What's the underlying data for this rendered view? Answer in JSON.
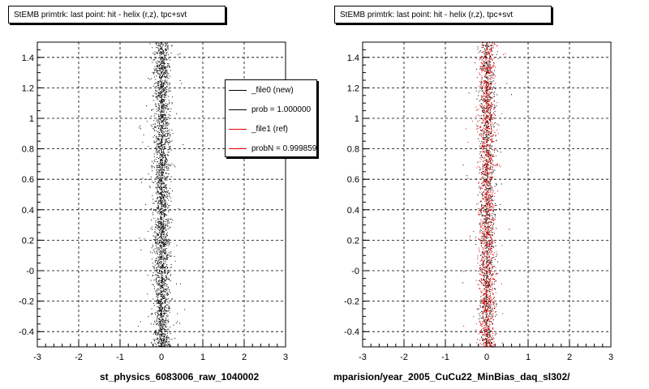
{
  "footer_text": "",
  "legend": {
    "entries": [
      {
        "label": "_file0 (new)",
        "color": "#000000"
      },
      {
        "label": "prob = 1.000000",
        "color": "#000000"
      },
      {
        "label": "_file1 (ref)",
        "color": "#e00000"
      },
      {
        "label": "probN = 0.999859",
        "color": "#e00000"
      }
    ]
  },
  "chart_data": [
    {
      "type": "scatter",
      "title": "StEMB primtrk: last point: hit - helix (r,z), tpc+svt",
      "xlabel": "st_physics_6083006_raw_1040002",
      "ylabel": "",
      "xlim": [
        -3,
        3
      ],
      "ylim": [
        -0.5,
        1.5
      ],
      "xticks": [
        "-3",
        "-2",
        "-1",
        "0",
        "1",
        "2",
        "3"
      ],
      "yticks": [
        "-0.4",
        "-0.2",
        "-0",
        "0.2",
        "0.4",
        "0.6",
        "0.8",
        "1",
        "1.2",
        "1.4"
      ],
      "grid": true,
      "legend_position": "top-right",
      "series": [
        {
          "color": "#000000",
          "x_center": 0.0,
          "x_spread": 0.18,
          "y_range": [
            -0.5,
            1.5
          ],
          "approx_points": 2600
        }
      ]
    },
    {
      "type": "scatter",
      "title": "StEMB primtrk: last point: hit - helix (r,z), tpc+svt",
      "xlabel": "mparision/year_2005_CuCu22_MinBias_daq_sl302/",
      "ylabel": "",
      "xlim": [
        -3,
        3
      ],
      "ylim": [
        -0.5,
        1.5
      ],
      "xticks": [
        "-3",
        "-2",
        "-1",
        "0",
        "1",
        "2",
        "3"
      ],
      "yticks": [
        "-0.4",
        "-0.2",
        "-0",
        "0.2",
        "0.4",
        "0.6",
        "0.8",
        "1",
        "1.2",
        "1.4"
      ],
      "grid": true,
      "series": [
        {
          "color": "#000000",
          "x_center": 0.0,
          "x_spread": 0.18,
          "y_range": [
            -0.5,
            1.5
          ],
          "approx_points": 1400
        },
        {
          "color": "#e00000",
          "x_center": 0.0,
          "x_spread": 0.18,
          "y_range": [
            -0.5,
            1.5
          ],
          "approx_points": 1600
        }
      ]
    }
  ]
}
